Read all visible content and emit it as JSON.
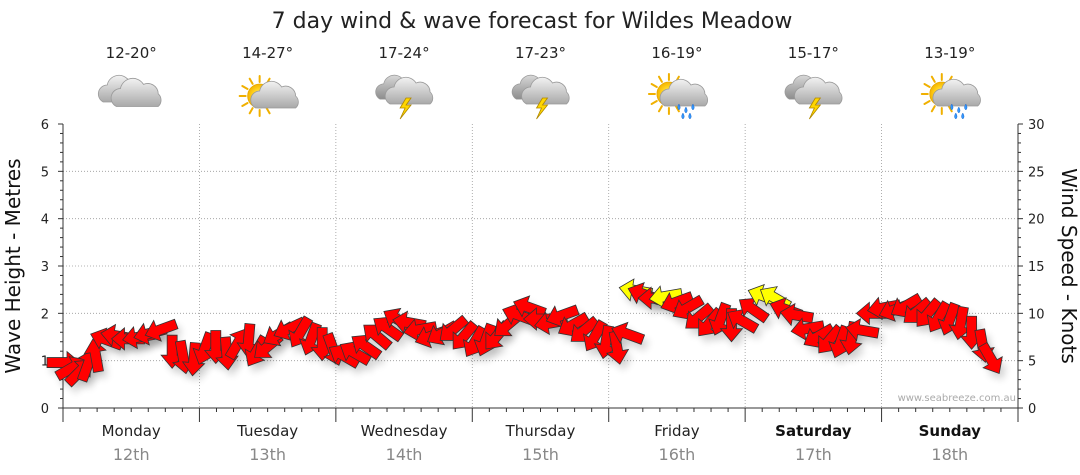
{
  "chart_data": {
    "type": "line",
    "title": "7 day wind & wave forecast for Wildes Meadow",
    "ylabel_left": "Wave Height - Metres",
    "ylabel_right": "Wind Speed - Knots",
    "ylim_left": [
      0,
      6
    ],
    "ylim_right": [
      0,
      30
    ],
    "yticks_left": [
      "0",
      "1",
      "2",
      "3",
      "4",
      "5",
      "6"
    ],
    "yticks_right": [
      "0",
      "5",
      "10",
      "15",
      "20",
      "25",
      "30"
    ],
    "grid": true,
    "credit": "www.seabreeze.com.au",
    "days": [
      {
        "name": "Monday",
        "date": "12th",
        "temp": "12-20°",
        "icon": "cloudy-icon",
        "bold": false
      },
      {
        "name": "Tuesday",
        "date": "13th",
        "temp": "14-27°",
        "icon": "partly-cloudy-icon",
        "bold": false
      },
      {
        "name": "Wednesday",
        "date": "14th",
        "temp": "17-24°",
        "icon": "thunderstorm-icon",
        "bold": false
      },
      {
        "name": "Thursday",
        "date": "15th",
        "temp": "17-23°",
        "icon": "thunderstorm-icon",
        "bold": false
      },
      {
        "name": "Friday",
        "date": "16th",
        "temp": "16-19°",
        "icon": "sun-showers-icon",
        "bold": false
      },
      {
        "name": "Saturday",
        "date": "17th",
        "temp": "15-17°",
        "icon": "thunderstorm-icon",
        "bold": true
      },
      {
        "name": "Sunday",
        "date": "18th",
        "temp": "13-19°",
        "icon": "sun-showers-icon",
        "bold": true
      }
    ],
    "wind_colors": {
      "normal": "#ff0000",
      "strong": "#ffff00",
      "outline": "#333333"
    },
    "series": [
      {
        "name": "Wind Speed",
        "unit": "knots",
        "points": [
          {
            "day": 0.0,
            "speed": 4.8,
            "dir": 0,
            "strong": false
          },
          {
            "day": 0.06,
            "speed": 4.2,
            "dir": -30,
            "strong": false
          },
          {
            "day": 0.12,
            "speed": 3.8,
            "dir": -45,
            "strong": false
          },
          {
            "day": 0.18,
            "speed": 4.5,
            "dir": -70,
            "strong": false
          },
          {
            "day": 0.24,
            "speed": 5.5,
            "dir": -100,
            "strong": false
          },
          {
            "day": 0.32,
            "speed": 7.2,
            "dir": 200,
            "strong": false
          },
          {
            "day": 0.4,
            "speed": 7.6,
            "dir": 190,
            "strong": false
          },
          {
            "day": 0.48,
            "speed": 7.3,
            "dir": 180,
            "strong": false
          },
          {
            "day": 0.56,
            "speed": 7.5,
            "dir": 170,
            "strong": false
          },
          {
            "day": 0.64,
            "speed": 7.9,
            "dir": 165,
            "strong": false
          },
          {
            "day": 0.72,
            "speed": 8.3,
            "dir": 160,
            "strong": false
          },
          {
            "day": 0.8,
            "speed": 6.0,
            "dir": 90,
            "strong": false
          },
          {
            "day": 0.88,
            "speed": 5.4,
            "dir": 80,
            "strong": false
          },
          {
            "day": 0.96,
            "speed": 5.2,
            "dir": 95,
            "strong": false
          },
          {
            "day": 1.04,
            "speed": 6.3,
            "dir": 110,
            "strong": false
          },
          {
            "day": 1.12,
            "speed": 6.5,
            "dir": 90,
            "strong": false
          },
          {
            "day": 1.2,
            "speed": 5.8,
            "dir": 85,
            "strong": false
          },
          {
            "day": 1.28,
            "speed": 6.8,
            "dir": -60,
            "strong": false
          },
          {
            "day": 1.36,
            "speed": 7.2,
            "dir": 95,
            "strong": false
          },
          {
            "day": 1.42,
            "speed": 6.0,
            "dir": 120,
            "strong": false
          },
          {
            "day": 1.5,
            "speed": 6.5,
            "dir": 140,
            "strong": false
          },
          {
            "day": 1.58,
            "speed": 7.8,
            "dir": 150,
            "strong": false
          },
          {
            "day": 1.66,
            "speed": 8.4,
            "dir": 155,
            "strong": false
          },
          {
            "day": 1.74,
            "speed": 8.0,
            "dir": 120,
            "strong": false
          },
          {
            "day": 1.82,
            "speed": 7.3,
            "dir": 110,
            "strong": false
          },
          {
            "day": 1.9,
            "speed": 6.8,
            "dir": 90,
            "strong": false
          },
          {
            "day": 1.98,
            "speed": 6.2,
            "dir": 70,
            "strong": false
          },
          {
            "day": 2.06,
            "speed": 5.5,
            "dir": 210,
            "strong": false
          },
          {
            "day": 2.14,
            "speed": 5.8,
            "dir": 210,
            "strong": false
          },
          {
            "day": 2.22,
            "speed": 6.5,
            "dir": 215,
            "strong": false
          },
          {
            "day": 2.3,
            "speed": 7.6,
            "dir": 220,
            "strong": false
          },
          {
            "day": 2.38,
            "speed": 8.4,
            "dir": 215,
            "strong": false
          },
          {
            "day": 2.46,
            "speed": 9.3,
            "dir": 210,
            "strong": false
          },
          {
            "day": 2.54,
            "speed": 9.0,
            "dir": 190,
            "strong": false
          },
          {
            "day": 2.62,
            "speed": 8.3,
            "dir": 170,
            "strong": false
          },
          {
            "day": 2.7,
            "speed": 7.6,
            "dir": 160,
            "strong": false
          },
          {
            "day": 2.78,
            "speed": 7.9,
            "dir": 150,
            "strong": false
          },
          {
            "day": 2.86,
            "speed": 8.3,
            "dir": 140,
            "strong": false
          },
          {
            "day": 2.94,
            "speed": 7.6,
            "dir": 130,
            "strong": false
          },
          {
            "day": 3.02,
            "speed": 7.0,
            "dir": 120,
            "strong": false
          },
          {
            "day": 3.1,
            "speed": 7.2,
            "dir": 110,
            "strong": false
          },
          {
            "day": 3.18,
            "speed": 7.6,
            "dir": 130,
            "strong": false
          },
          {
            "day": 3.26,
            "speed": 8.8,
            "dir": 140,
            "strong": false
          },
          {
            "day": 3.34,
            "speed": 9.8,
            "dir": 200,
            "strong": false
          },
          {
            "day": 3.42,
            "speed": 10.6,
            "dir": 200,
            "strong": false
          },
          {
            "day": 3.5,
            "speed": 9.4,
            "dir": 180,
            "strong": false
          },
          {
            "day": 3.58,
            "speed": 9.0,
            "dir": 170,
            "strong": false
          },
          {
            "day": 3.66,
            "speed": 9.8,
            "dir": 160,
            "strong": false
          },
          {
            "day": 3.74,
            "speed": 8.8,
            "dir": 150,
            "strong": false
          },
          {
            "day": 3.82,
            "speed": 8.2,
            "dir": 140,
            "strong": false
          },
          {
            "day": 3.9,
            "speed": 7.6,
            "dir": 120,
            "strong": false
          },
          {
            "day": 3.98,
            "speed": 7.0,
            "dir": 100,
            "strong": false
          },
          {
            "day": 4.06,
            "speed": 6.4,
            "dir": 80,
            "strong": false
          },
          {
            "day": 4.14,
            "speed": 7.8,
            "dir": 200,
            "strong": false
          },
          {
            "day": 4.2,
            "speed": 12.4,
            "dir": 190,
            "strong": true
          },
          {
            "day": 4.26,
            "speed": 12.0,
            "dir": 200,
            "strong": false
          },
          {
            "day": 4.34,
            "speed": 11.6,
            "dir": 180,
            "strong": false
          },
          {
            "day": 4.42,
            "speed": 11.8,
            "dir": 170,
            "strong": true
          },
          {
            "day": 4.5,
            "speed": 11.2,
            "dir": 160,
            "strong": false
          },
          {
            "day": 4.58,
            "speed": 10.6,
            "dir": 150,
            "strong": false
          },
          {
            "day": 4.66,
            "speed": 9.6,
            "dir": 140,
            "strong": false
          },
          {
            "day": 4.74,
            "speed": 9.0,
            "dir": 130,
            "strong": false
          },
          {
            "day": 4.82,
            "speed": 9.4,
            "dir": 110,
            "strong": false
          },
          {
            "day": 4.9,
            "speed": 8.8,
            "dir": 90,
            "strong": false
          },
          {
            "day": 4.98,
            "speed": 9.2,
            "dir": 210,
            "strong": false
          },
          {
            "day": 5.06,
            "speed": 10.4,
            "dir": 215,
            "strong": false
          },
          {
            "day": 5.14,
            "speed": 11.8,
            "dir": 200,
            "strong": true
          },
          {
            "day": 5.22,
            "speed": 11.6,
            "dir": 210,
            "strong": true
          },
          {
            "day": 5.3,
            "speed": 10.4,
            "dir": 200,
            "strong": false
          },
          {
            "day": 5.38,
            "speed": 9.8,
            "dir": 190,
            "strong": false
          },
          {
            "day": 5.46,
            "speed": 8.4,
            "dir": 170,
            "strong": false
          },
          {
            "day": 5.54,
            "speed": 7.6,
            "dir": 150,
            "strong": false
          },
          {
            "day": 5.62,
            "speed": 7.2,
            "dir": 130,
            "strong": false
          },
          {
            "day": 5.7,
            "speed": 7.0,
            "dir": 110,
            "strong": false
          },
          {
            "day": 5.78,
            "speed": 7.4,
            "dir": 100,
            "strong": false
          },
          {
            "day": 5.86,
            "speed": 8.2,
            "dir": 190,
            "strong": false
          },
          {
            "day": 5.94,
            "speed": 10.0,
            "dir": 180,
            "strong": false
          },
          {
            "day": 6.02,
            "speed": 10.6,
            "dir": 170,
            "strong": false
          },
          {
            "day": 6.1,
            "speed": 10.4,
            "dir": 160,
            "strong": false
          },
          {
            "day": 6.18,
            "speed": 10.8,
            "dir": 150,
            "strong": false
          },
          {
            "day": 6.26,
            "speed": 10.2,
            "dir": 140,
            "strong": false
          },
          {
            "day": 6.34,
            "speed": 10.0,
            "dir": 130,
            "strong": false
          },
          {
            "day": 6.42,
            "speed": 9.6,
            "dir": 120,
            "strong": false
          },
          {
            "day": 6.5,
            "speed": 9.4,
            "dir": 110,
            "strong": false
          },
          {
            "day": 6.58,
            "speed": 9.0,
            "dir": 100,
            "strong": false
          },
          {
            "day": 6.66,
            "speed": 8.0,
            "dir": 90,
            "strong": false
          },
          {
            "day": 6.74,
            "speed": 6.6,
            "dir": 80,
            "strong": false
          },
          {
            "day": 6.8,
            "speed": 5.2,
            "dir": 60,
            "strong": false
          }
        ]
      }
    ]
  }
}
